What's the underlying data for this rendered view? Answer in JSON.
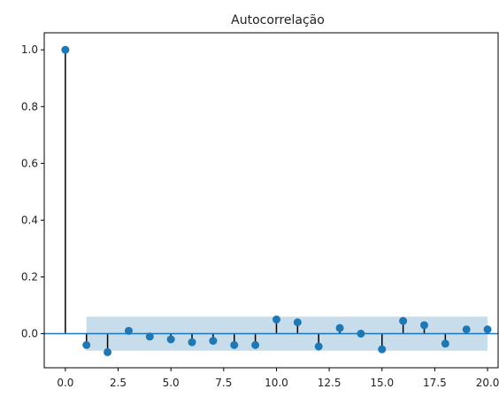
{
  "chart_data": {
    "type": "stem",
    "title": "Autocorrelação",
    "xlabel": "",
    "ylabel": "",
    "xlim": [
      -1.0,
      20.5
    ],
    "ylim": [
      -0.12,
      1.06
    ],
    "x_ticks": [
      0.0,
      2.5,
      5.0,
      7.5,
      10.0,
      12.5,
      15.0,
      17.5,
      20.0
    ],
    "x_tick_labels": [
      "0.0",
      "2.5",
      "5.0",
      "7.5",
      "10.0",
      "12.5",
      "15.0",
      "17.5",
      "20.0"
    ],
    "y_ticks": [
      0.0,
      0.2,
      0.4,
      0.6,
      0.8,
      1.0
    ],
    "y_tick_labels": [
      "0.0",
      "0.2",
      "0.4",
      "0.6",
      "0.8",
      "1.0"
    ],
    "grid": false,
    "legend": "none",
    "colors": {
      "marker": "#1f77b4",
      "stem": "#000000",
      "zero_line": "#1f77b4",
      "confidence_band": "#1f77b4",
      "axes": "#000000"
    },
    "confidence_band": {
      "x_start": 1,
      "x_end": 20,
      "lower": -0.06,
      "upper": 0.06
    },
    "x": [
      0,
      1,
      2,
      3,
      4,
      5,
      6,
      7,
      8,
      9,
      10,
      11,
      12,
      13,
      14,
      15,
      16,
      17,
      18,
      19,
      20
    ],
    "values": [
      1.0,
      -0.04,
      -0.065,
      0.01,
      -0.01,
      -0.02,
      -0.03,
      -0.025,
      -0.04,
      -0.04,
      0.05,
      0.04,
      -0.045,
      0.02,
      0.0,
      -0.055,
      0.045,
      0.03,
      -0.035,
      0.015,
      0.015
    ]
  }
}
